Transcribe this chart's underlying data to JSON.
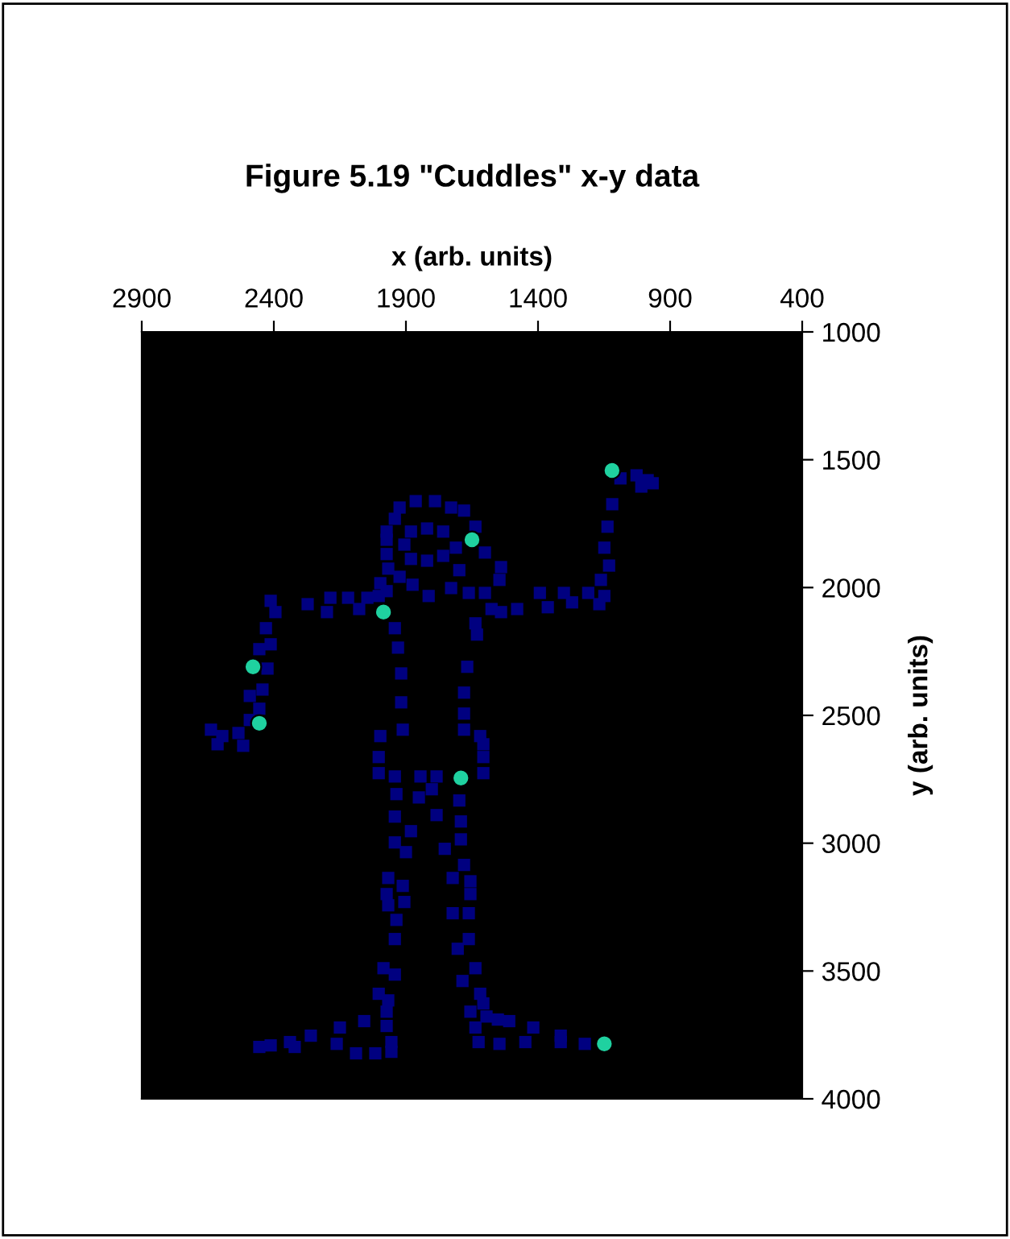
{
  "chart_data": {
    "type": "scatter",
    "title": "Figure 5.19 \"Cuddles\" x-y data",
    "xlabel": "x (arb. units)",
    "ylabel": "y (arb. units)",
    "xlim": [
      2900,
      400
    ],
    "xticks": [
      2900,
      2400,
      1900,
      1400,
      900,
      400
    ],
    "ylim": [
      4000,
      1000
    ],
    "yticks": [
      1000,
      1500,
      2000,
      2500,
      3000,
      3500,
      4000
    ],
    "grid": false,
    "legend": false,
    "series": [
      {
        "color": "#000080",
        "marker": "square",
        "x": [
          1088,
          1027,
          985,
          966,
          1009,
          1119,
          1137,
          1149,
          1131,
          1162,
          1149,
          1168,
          1393,
          1302,
          1210,
          1363,
          1271,
          1479,
          1576,
          2186,
          2119,
          2046,
          2272,
          2199,
          2077,
          2412,
          2394,
          2430,
          2412,
          2455,
          2424,
          2443,
          2491,
          2455,
          2638,
          2595,
          2534,
          2516,
          2613,
          2491,
          1863,
          1790,
          1729,
          1680,
          1924,
          1942,
          1973,
          1973,
          1973,
          1967,
          1997,
          1973,
          1881,
          1820,
          1759,
          1906,
          1881,
          1820,
          1759,
          1711,
          1637,
          1601,
          1540,
          1546,
          1601,
          1662,
          1729,
          1814,
          1875,
          1924,
          1698,
          2003,
          1540,
          1637,
          1631,
          1942,
          1930,
          1918,
          1918,
          1912,
          1997,
          2003,
          2003,
          1668,
          1680,
          1680,
          1680,
          1619,
          1607,
          1607,
          1607,
          1942,
          1845,
          1784,
          1802,
          1936,
          1851,
          1942,
          1881,
          1942,
          1900,
          1967,
          1912,
          1973,
          1967,
          1906,
          1936,
          1942,
          1985,
          1942,
          2003,
          1967,
          1973,
          2058,
          1973,
          2150,
          2260,
          2339,
          2412,
          2455,
          2321,
          2162,
          2089,
          2016,
          1955,
          1955,
          1698,
          1784,
          1692,
          1692,
          1753,
          1680,
          1723,
          1656,
          1656,
          1723,
          1662,
          1662,
          1704,
          1637,
          1686,
          1619,
          1607,
          1656,
          1595,
          1552,
          1509,
          1637,
          1418,
          1625,
          1546,
          1448,
          1314,
          1314,
          1223
        ],
        "values": [
          1573,
          1561,
          1580,
          1592,
          1605,
          1674,
          1762,
          1844,
          1914,
          1970,
          2033,
          2065,
          2021,
          2021,
          2021,
          2077,
          2058,
          2084,
          2084,
          2040,
          2040,
          2040,
          2065,
          2096,
          2084,
          2052,
          2096,
          2159,
          2222,
          2241,
          2317,
          2399,
          2424,
          2474,
          2556,
          2581,
          2569,
          2619,
          2613,
          2518,
          1662,
          1662,
          1687,
          1699,
          1687,
          1731,
          1781,
          1813,
          1869,
          1926,
          1983,
          2014,
          1781,
          1769,
          1781,
          1832,
          1888,
          1895,
          1876,
          1844,
          1762,
          1863,
          1920,
          1970,
          2021,
          2021,
          2002,
          2033,
          1989,
          1958,
          1932,
          2033,
          2096,
          2140,
          2184,
          2159,
          2235,
          2336,
          2449,
          2556,
          2581,
          2663,
          2726,
          2310,
          2411,
          2493,
          2556,
          2581,
          2613,
          2663,
          2726,
          2739,
          2739,
          2739,
          2789,
          2808,
          2821,
          2896,
          2953,
          2997,
          3035,
          3136,
          3167,
          3199,
          3243,
          3230,
          3300,
          3375,
          3489,
          3514,
          3589,
          3615,
          3659,
          3696,
          3715,
          3721,
          3753,
          3778,
          3791,
          3797,
          3797,
          3785,
          3822,
          3822,
          3778,
          3816,
          2833,
          2890,
          2915,
          2985,
          3022,
          3085,
          3136,
          3149,
          3199,
          3274,
          3274,
          3375,
          3413,
          3489,
          3539,
          3589,
          3627,
          3659,
          3678,
          3690,
          3696,
          3721,
          3721,
          3778,
          3785,
          3778,
          3753,
          3778,
          3785
        ]
      },
      {
        "color": "#1fd1a0",
        "marker": "circle",
        "x": [
          1120,
          1650,
          1985,
          2479,
          2455,
          1692,
          1149
        ],
        "values": [
          1542,
          1813,
          2096,
          2310,
          2531,
          2745,
          3785
        ]
      }
    ]
  }
}
